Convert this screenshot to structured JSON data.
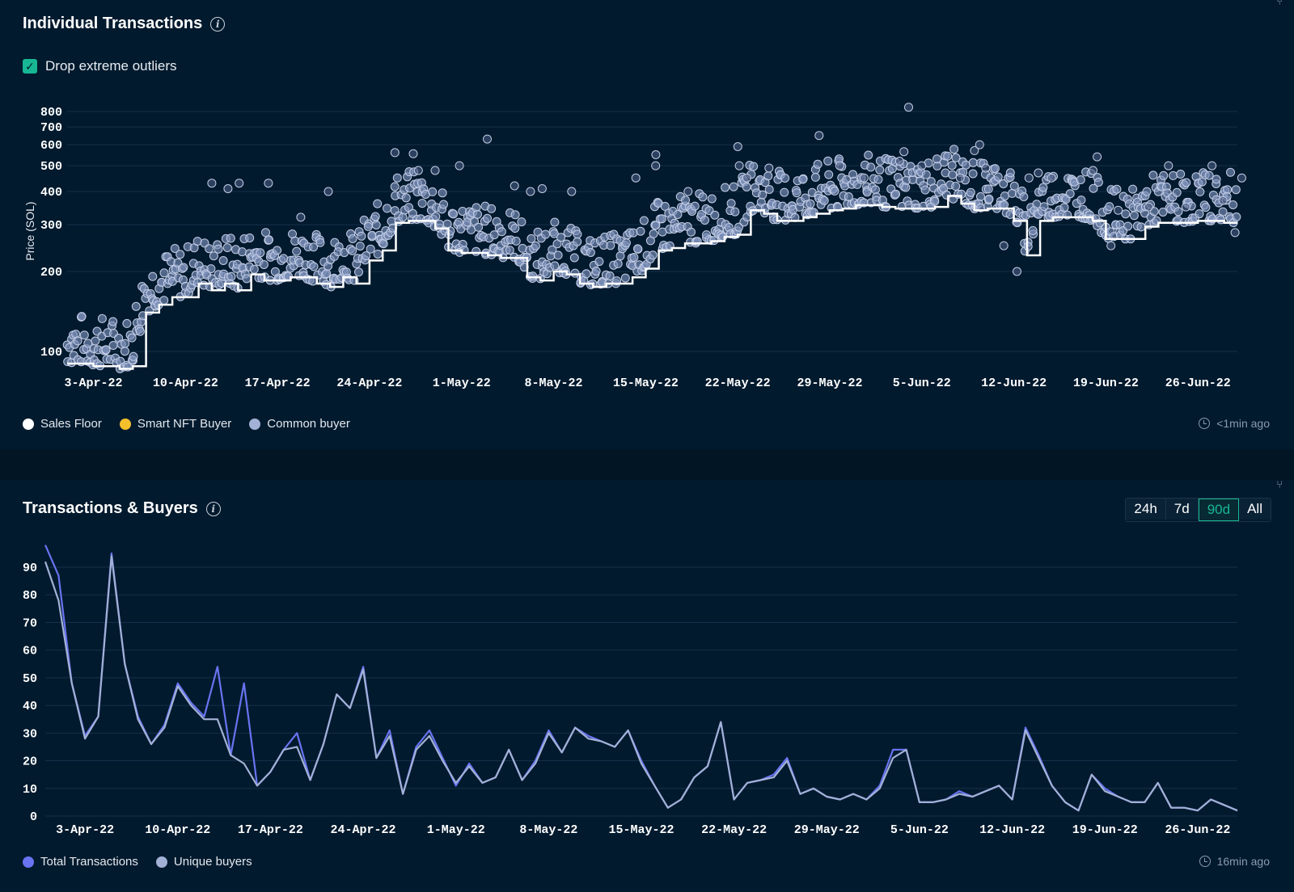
{
  "individual": {
    "title": "Individual Transactions",
    "checkbox_label": "Drop extreme outliers",
    "checkbox_checked": true,
    "updated": "<1min ago",
    "legend": [
      {
        "label": "Sales Floor",
        "color": "#ffffff"
      },
      {
        "label": "Smart NFT Buyer",
        "color": "#f5c02c"
      },
      {
        "label": "Common buyer",
        "color": "#a3b1d6"
      }
    ]
  },
  "tx_buyers": {
    "title": "Transactions & Buyers",
    "updated": "16min ago",
    "ranges": [
      "24h",
      "7d",
      "90d",
      "All"
    ],
    "active_range": "90d",
    "legend": [
      {
        "label": "Total Transactions",
        "color": "#6874f0"
      },
      {
        "label": "Unique buyers",
        "color": "#a3b1d6"
      }
    ]
  },
  "chart_data": [
    {
      "type": "scatter",
      "ylabel": "Price (SOL)",
      "yscale": "log",
      "yticks": [
        100,
        200,
        300,
        400,
        500,
        600,
        700,
        800
      ],
      "xticks": [
        "3-Apr-22",
        "10-Apr-22",
        "17-Apr-22",
        "24-Apr-22",
        "1-May-22",
        "8-May-22",
        "15-May-22",
        "22-May-22",
        "29-May-22",
        "5-Jun-22",
        "12-Jun-22",
        "19-Jun-22",
        "26-Jun-22"
      ],
      "x_start": "1-Apr-22",
      "series": [
        {
          "name": "Sales Floor",
          "type": "line",
          "points": [
            [
              "1-Apr-22",
              90
            ],
            [
              "2-Apr-22",
              90
            ],
            [
              "3-Apr-22",
              88
            ],
            [
              "4-Apr-22",
              88
            ],
            [
              "5-Apr-22",
              86
            ],
            [
              "6-Apr-22",
              88
            ],
            [
              "7-Apr-22",
              140
            ],
            [
              "8-Apr-22",
              150
            ],
            [
              "9-Apr-22",
              160
            ],
            [
              "10-Apr-22",
              160
            ],
            [
              "11-Apr-22",
              180
            ],
            [
              "12-Apr-22",
              170
            ],
            [
              "13-Apr-22",
              180
            ],
            [
              "14-Apr-22",
              170
            ],
            [
              "15-Apr-22",
              195
            ],
            [
              "16-Apr-22",
              185
            ],
            [
              "17-Apr-22",
              185
            ],
            [
              "18-Apr-22",
              190
            ],
            [
              "19-Apr-22",
              190
            ],
            [
              "20-Apr-22",
              180
            ],
            [
              "21-Apr-22",
              175
            ],
            [
              "22-Apr-22",
              190
            ],
            [
              "23-Apr-22",
              180
            ],
            [
              "24-Apr-22",
              220
            ],
            [
              "25-Apr-22",
              240
            ],
            [
              "26-Apr-22",
              305
            ],
            [
              "27-Apr-22",
              310
            ],
            [
              "28-Apr-22",
              310
            ],
            [
              "29-Apr-22",
              290
            ],
            [
              "30-Apr-22",
              240
            ],
            [
              "1-May-22",
              235
            ],
            [
              "2-May-22",
              235
            ],
            [
              "3-May-22",
              230
            ],
            [
              "4-May-22",
              225
            ],
            [
              "5-May-22",
              225
            ],
            [
              "6-May-22",
              190
            ],
            [
              "7-May-22",
              185
            ],
            [
              "8-May-22",
              200
            ],
            [
              "9-May-22",
              195
            ],
            [
              "10-May-22",
              180
            ],
            [
              "11-May-22",
              175
            ],
            [
              "12-May-22",
              180
            ],
            [
              "13-May-22",
              180
            ],
            [
              "14-May-22",
              190
            ],
            [
              "15-May-22",
              205
            ],
            [
              "16-May-22",
              240
            ],
            [
              "17-May-22",
              245
            ],
            [
              "18-May-22",
              255
            ],
            [
              "19-May-22",
              255
            ],
            [
              "20-May-22",
              260
            ],
            [
              "21-May-22",
              270
            ],
            [
              "22-May-22",
              275
            ],
            [
              "23-May-22",
              340
            ],
            [
              "24-May-22",
              330
            ],
            [
              "25-May-22",
              310
            ],
            [
              "26-May-22",
              310
            ],
            [
              "27-May-22",
              320
            ],
            [
              "28-May-22",
              330
            ],
            [
              "29-May-22",
              340
            ],
            [
              "30-May-22",
              345
            ],
            [
              "31-May-22",
              355
            ],
            [
              "1-Jun-22",
              355
            ],
            [
              "2-Jun-22",
              350
            ],
            [
              "3-Jun-22",
              345
            ],
            [
              "4-Jun-22",
              345
            ],
            [
              "5-Jun-22",
              345
            ],
            [
              "6-Jun-22",
              350
            ],
            [
              "7-Jun-22",
              385
            ],
            [
              "8-Jun-22",
              360
            ],
            [
              "9-Jun-22",
              340
            ],
            [
              "10-Jun-22",
              345
            ],
            [
              "11-Jun-22",
              345
            ],
            [
              "12-Jun-22",
              310
            ],
            [
              "13-Jun-22",
              230
            ],
            [
              "14-Jun-22",
              310
            ],
            [
              "15-Jun-22",
              320
            ],
            [
              "16-Jun-22",
              320
            ],
            [
              "17-Jun-22",
              320
            ],
            [
              "18-Jun-22",
              310
            ],
            [
              "19-Jun-22",
              265
            ],
            [
              "20-Jun-22",
              265
            ],
            [
              "21-Jun-22",
              265
            ],
            [
              "22-Jun-22",
              295
            ],
            [
              "23-Jun-22",
              305
            ],
            [
              "24-Jun-22",
              305
            ],
            [
              "25-Jun-22",
              305
            ],
            [
              "26-Jun-22",
              310
            ],
            [
              "27-Jun-22",
              310
            ],
            [
              "28-Jun-22",
              305
            ],
            [
              "29-Jun-22",
              305
            ]
          ]
        },
        {
          "name": "Common buyer",
          "type": "scatter",
          "outliers": [
            [
              "12-Apr-22",
              430
            ],
            [
              "13-Apr-22",
              410
            ],
            [
              "14-Apr-22",
              430
            ],
            [
              "16-Apr-22",
              430
            ],
            [
              "19-Apr-22",
              320
            ],
            [
              "21-Apr-22",
              400
            ],
            [
              "26-Apr-22",
              560
            ],
            [
              "27-Apr-22",
              555
            ],
            [
              "28-Apr-22",
              480
            ],
            [
              "29-Apr-22",
              480
            ],
            [
              "1-May-22",
              500
            ],
            [
              "3-May-22",
              630
            ],
            [
              "5-May-22",
              420
            ],
            [
              "6-May-22",
              400
            ],
            [
              "7-May-22",
              410
            ],
            [
              "9-May-22",
              400
            ],
            [
              "14-May-22",
              450
            ],
            [
              "16-May-22",
              550
            ],
            [
              "16-May-22",
              500
            ],
            [
              "18-May-22",
              400
            ],
            [
              "22-May-22",
              590
            ],
            [
              "22-May-22",
              500
            ],
            [
              "23-May-22",
              450
            ],
            [
              "24-May-22",
              490
            ],
            [
              "28-May-22",
              650
            ],
            [
              "30-May-22",
              500
            ],
            [
              "1-Jun-22",
              450
            ],
            [
              "3-Jun-22",
              520
            ],
            [
              "4-Jun-22",
              830
            ],
            [
              "4-Jun-22",
              565
            ],
            [
              "5-Jun-22",
              500
            ],
            [
              "8-Jun-22",
              450
            ],
            [
              "9-Jun-22",
              570
            ],
            [
              "9-Jun-22",
              600
            ],
            [
              "10-Jun-22",
              490
            ],
            [
              "11-Jun-22",
              250
            ],
            [
              "12-Jun-22",
              200
            ],
            [
              "13-Jun-22",
              450
            ],
            [
              "14-Jun-22",
              470
            ],
            [
              "15-Jun-22",
              450
            ],
            [
              "18-Jun-22",
              540
            ],
            [
              "18-Jun-22",
              480
            ],
            [
              "19-Jun-22",
              250
            ],
            [
              "20-Jun-22",
              340
            ],
            [
              "22-Jun-22",
              350
            ],
            [
              "24-Jun-22",
              500
            ],
            [
              "25-Jun-22",
              350
            ],
            [
              "27-Jun-22",
              500
            ],
            [
              "28-Jun-22",
              370
            ],
            [
              "29-Jun-22",
              450
            ],
            [
              "29-Jun-22",
              280
            ]
          ]
        }
      ]
    },
    {
      "type": "line",
      "yticks": [
        0,
        10,
        20,
        30,
        40,
        50,
        60,
        70,
        80,
        90
      ],
      "xticks": [
        "3-Apr-22",
        "10-Apr-22",
        "17-Apr-22",
        "24-Apr-22",
        "1-May-22",
        "8-May-22",
        "15-May-22",
        "22-May-22",
        "29-May-22",
        "5-Jun-22",
        "12-Jun-22",
        "19-Jun-22",
        "26-Jun-22"
      ],
      "x": [
        "31-Mar-22",
        "1-Apr-22",
        "2-Apr-22",
        "3-Apr-22",
        "4-Apr-22",
        "5-Apr-22",
        "6-Apr-22",
        "7-Apr-22",
        "8-Apr-22",
        "9-Apr-22",
        "10-Apr-22",
        "11-Apr-22",
        "12-Apr-22",
        "13-Apr-22",
        "14-Apr-22",
        "15-Apr-22",
        "16-Apr-22",
        "17-Apr-22",
        "18-Apr-22",
        "19-Apr-22",
        "20-Apr-22",
        "21-Apr-22",
        "22-Apr-22",
        "23-Apr-22",
        "24-Apr-22",
        "25-Apr-22",
        "26-Apr-22",
        "27-Apr-22",
        "28-Apr-22",
        "29-Apr-22",
        "30-Apr-22",
        "1-May-22",
        "2-May-22",
        "3-May-22",
        "4-May-22",
        "5-May-22",
        "6-May-22",
        "7-May-22",
        "8-May-22",
        "9-May-22",
        "10-May-22",
        "11-May-22",
        "12-May-22",
        "13-May-22",
        "14-May-22",
        "15-May-22",
        "16-May-22",
        "17-May-22",
        "18-May-22",
        "19-May-22",
        "20-May-22",
        "21-May-22",
        "22-May-22",
        "23-May-22",
        "24-May-22",
        "25-May-22",
        "26-May-22",
        "27-May-22",
        "28-May-22",
        "29-May-22",
        "30-May-22",
        "31-May-22",
        "1-Jun-22",
        "2-Jun-22",
        "3-Jun-22",
        "4-Jun-22",
        "5-Jun-22",
        "6-Jun-22",
        "7-Jun-22",
        "8-Jun-22",
        "9-Jun-22",
        "10-Jun-22",
        "11-Jun-22",
        "12-Jun-22",
        "13-Jun-22",
        "14-Jun-22",
        "15-Jun-22",
        "16-Jun-22",
        "17-Jun-22",
        "18-Jun-22",
        "19-Jun-22",
        "20-Jun-22",
        "21-Jun-22",
        "22-Jun-22",
        "23-Jun-22",
        "24-Jun-22",
        "25-Jun-22",
        "26-Jun-22",
        "27-Jun-22",
        "28-Jun-22",
        "29-Jun-22"
      ],
      "series": [
        {
          "name": "Total Transactions",
          "values": [
            98,
            87,
            48,
            29,
            36,
            95,
            55,
            36,
            26,
            33,
            48,
            41,
            36,
            54,
            22,
            48,
            11,
            16,
            24,
            30,
            13,
            26,
            44,
            39,
            54,
            21,
            31,
            8,
            25,
            31,
            21,
            11,
            19,
            12,
            14,
            24,
            13,
            20,
            31,
            23,
            32,
            29,
            27,
            25,
            31,
            20,
            11,
            3,
            6,
            14,
            18,
            34,
            6,
            12,
            13,
            15,
            21,
            8,
            10,
            7,
            6,
            8,
            6,
            11,
            24,
            24,
            5,
            5,
            6,
            9,
            7,
            9,
            11,
            6,
            32,
            22,
            11,
            5,
            2,
            15,
            10,
            7,
            5,
            5,
            12,
            3,
            3,
            2,
            6,
            4,
            2
          ]
        },
        {
          "name": "Unique buyers",
          "values": [
            92,
            78,
            48,
            28,
            36,
            94,
            55,
            35,
            26,
            32,
            47,
            40,
            35,
            35,
            22,
            19,
            11,
            16,
            24,
            25,
            13,
            26,
            44,
            39,
            53,
            21,
            29,
            8,
            24,
            29,
            20,
            12,
            18,
            12,
            14,
            24,
            13,
            19,
            30,
            23,
            32,
            28,
            27,
            25,
            31,
            19,
            11,
            3,
            6,
            14,
            18,
            34,
            6,
            12,
            13,
            14,
            20,
            8,
            10,
            7,
            6,
            8,
            6,
            10,
            21,
            24,
            5,
            5,
            6,
            8,
            7,
            9,
            11,
            6,
            31,
            21,
            11,
            5,
            2,
            15,
            9,
            7,
            5,
            5,
            12,
            3,
            3,
            2,
            6,
            4,
            2
          ]
        }
      ]
    }
  ]
}
